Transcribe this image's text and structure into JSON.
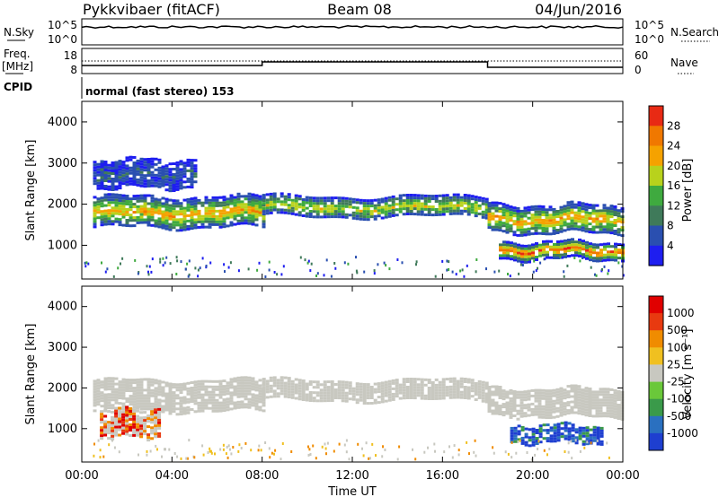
{
  "header": {
    "station": "Pykkvibaer (fitACF)",
    "beam": "Beam 08",
    "date": "04/Jun/2016"
  },
  "top_panels": {
    "nsky_label": "N.Sky",
    "nsky_ticks": [
      "10^5",
      "10^0"
    ],
    "nsearch_label": "N.Search",
    "nsearch_ticks": [
      "10^5",
      "10^0"
    ],
    "freq_label": "Freq.",
    "freq_unit": "[MHz]",
    "freq_ticks": [
      "18",
      "8"
    ],
    "nave_label": "Nave",
    "nave_ticks": [
      "60",
      "0"
    ],
    "cpid_label": "CPID",
    "cpid_value": "normal (fast stereo) 153"
  },
  "chart_data": [
    {
      "type": "heatmap",
      "panel": "power",
      "ylabel": "Slant Range [km]",
      "yticks": [
        "4000",
        "3000",
        "2000",
        "1000"
      ],
      "ylim": [
        180,
        4500
      ],
      "xlim": [
        0,
        24
      ],
      "colorbar_label": "Power [dB]",
      "colorbar_ticks": [
        "28",
        "24",
        "20",
        "16",
        "12",
        "8",
        "4"
      ],
      "colors": [
        "#1e1ef0",
        "#2a4fb0",
        "#3f7a5a",
        "#3faa3f",
        "#b8d21c",
        "#f5a200",
        "#f07800",
        "#e82a14"
      ],
      "bands": [
        {
          "t": [
            0.5,
            8.0
          ],
          "r": [
            1450,
            2200
          ],
          "level": "high"
        },
        {
          "t": [
            8.0,
            18.0
          ],
          "r": [
            1700,
            2200
          ],
          "level": "mid"
        },
        {
          "t": [
            18.0,
            24.0
          ],
          "r": [
            1300,
            2000
          ],
          "level": "high"
        },
        {
          "t": [
            18.5,
            24.0
          ],
          "r": [
            700,
            1100
          ],
          "level": "peak"
        },
        {
          "t": [
            0.5,
            5.0
          ],
          "r": [
            2400,
            3100
          ],
          "level": "low"
        }
      ]
    },
    {
      "type": "heatmap",
      "panel": "velocity",
      "ylabel": "Slant Range [km]",
      "yticks": [
        "4000",
        "3000",
        "2000",
        "1000"
      ],
      "ylim": [
        180,
        4500
      ],
      "xlim": [
        0,
        24
      ],
      "colorbar_label": "Velocity [m s⁻¹]",
      "colorbar_ticks": [
        "1000",
        "500",
        "100",
        "25",
        "-25",
        "-100",
        "-500",
        "-1000"
      ],
      "colors": [
        "#1e3fd0",
        "#2a70c0",
        "#3a9a4a",
        "#6ac83a",
        "#c8c8c0",
        "#f0c020",
        "#f08c00",
        "#e83a10",
        "#e00000"
      ],
      "bands": [
        {
          "t": [
            0.5,
            8.0
          ],
          "r": [
            1450,
            2200
          ],
          "level": "ground"
        },
        {
          "t": [
            8.0,
            18.0
          ],
          "r": [
            1700,
            2200
          ],
          "level": "ground"
        },
        {
          "t": [
            18.0,
            24.0
          ],
          "r": [
            1300,
            2000
          ],
          "level": "ground"
        },
        {
          "t": [
            19.0,
            23.0
          ],
          "r": [
            700,
            1100
          ],
          "level": "away"
        },
        {
          "t": [
            0.8,
            3.5
          ],
          "r": [
            800,
            1500
          ],
          "level": "toward"
        }
      ]
    }
  ],
  "x_axis": {
    "label": "Time UT",
    "ticks": [
      "00:00",
      "04:00",
      "08:00",
      "12:00",
      "16:00",
      "20:00",
      "00:00"
    ]
  }
}
